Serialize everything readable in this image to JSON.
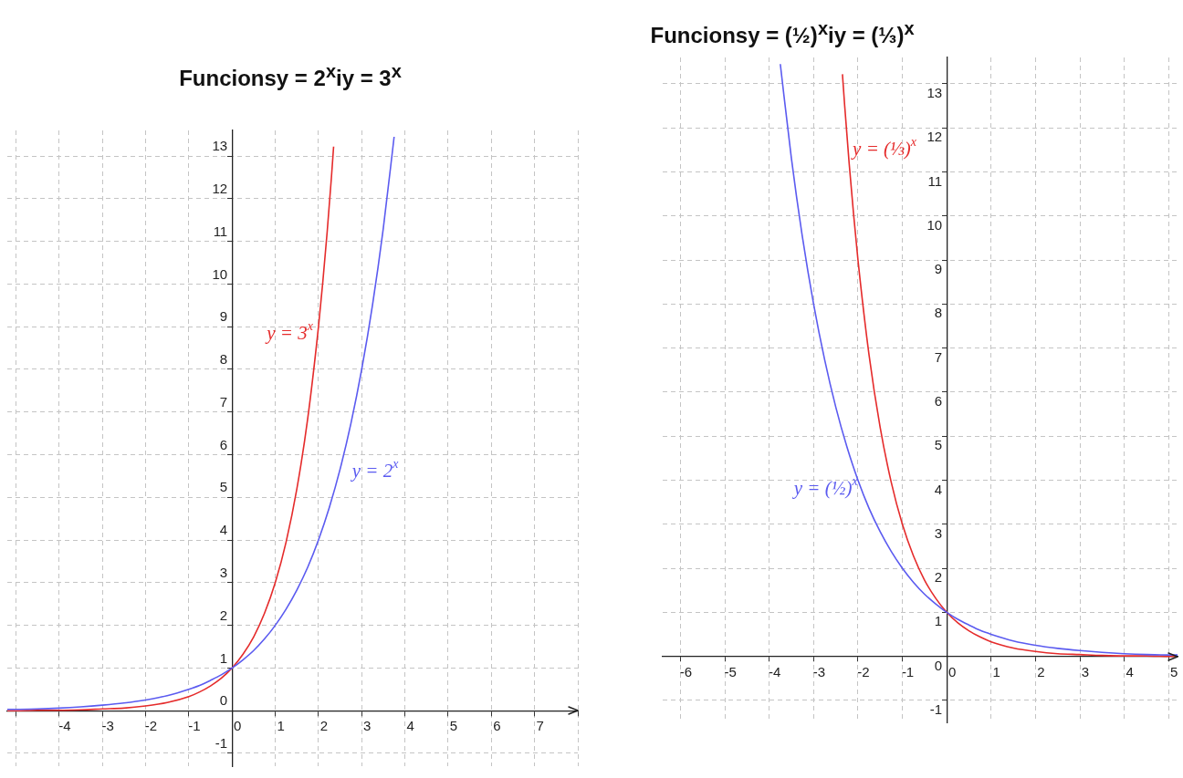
{
  "chart_data": [
    {
      "type": "line",
      "title": "Funcionsy = 2$^{x}$iy = 3$^{x}$",
      "series": [
        {
          "name": "y = 2$^{x}$",
          "color": "#5b5bf0",
          "x": [
            -5.2,
            -5,
            -4.5,
            -4,
            -3.5,
            -3,
            -2.5,
            -2,
            -1.5,
            -1,
            -0.75,
            -0.5,
            -0.25,
            0,
            0.25,
            0.5,
            0.75,
            1,
            1.25,
            1.5,
            1.75,
            2,
            2.25,
            2.5,
            2.75,
            3,
            3.25,
            3.5,
            3.75
          ],
          "values": [
            0.03,
            0.03,
            0.04,
            0.06,
            0.09,
            0.13,
            0.18,
            0.25,
            0.35,
            0.5,
            0.59,
            0.71,
            0.84,
            1,
            1.19,
            1.41,
            1.68,
            2,
            2.38,
            2.83,
            3.36,
            4,
            4.76,
            5.66,
            6.73,
            8,
            9.51,
            11.31,
            13.45
          ]
        },
        {
          "name": "y = 3$^{x}$",
          "color": "#e52b2b",
          "x": [
            -5.2,
            -5,
            -4.5,
            -4,
            -3.5,
            -3,
            -2.5,
            -2,
            -1.5,
            -1,
            -0.75,
            -0.5,
            -0.25,
            0,
            0.25,
            0.5,
            0.75,
            1,
            1.25,
            1.5,
            1.75,
            2,
            2.1,
            2.2,
            2.3,
            2.35
          ],
          "values": [
            0,
            0,
            0.01,
            0.01,
            0.02,
            0.04,
            0.06,
            0.11,
            0.19,
            0.33,
            0.44,
            0.58,
            0.76,
            1,
            1.32,
            1.73,
            2.28,
            3,
            3.95,
            5.2,
            6.84,
            9,
            10.05,
            11.21,
            12.51,
            13.22
          ]
        }
      ],
      "xlim": [
        -5.2,
        8
      ],
      "ylim": [
        -1.3,
        13.6
      ],
      "xticks": [
        {
          "value": -5,
          "label": null
        },
        -4,
        -3,
        -2,
        -1,
        0,
        1,
        2,
        3,
        4,
        5,
        6,
        7,
        {
          "value": 8,
          "label": null
        }
      ],
      "yticks": [
        -1,
        0,
        1,
        2,
        3,
        4,
        5,
        6,
        7,
        8,
        9,
        10,
        11,
        12,
        13
      ],
      "grid": true
    },
    {
      "type": "line",
      "title": "Funcionsy = (½)$^{x}$iy = (⅓)$^{x}$",
      "series": [
        {
          "name": "y = (½)$^{x}$",
          "color": "#5b5bf0",
          "x": [
            -3.75,
            -3.5,
            -3.25,
            -3,
            -2.75,
            -2.5,
            -2.25,
            -2,
            -1.75,
            -1.5,
            -1.25,
            -1,
            -0.75,
            -0.5,
            -0.25,
            0,
            0.25,
            0.5,
            0.75,
            1,
            1.5,
            2,
            2.5,
            3,
            3.5,
            4,
            4.5,
            5,
            5.2
          ],
          "values": [
            13.45,
            11.31,
            9.51,
            8,
            6.73,
            5.66,
            4.76,
            4,
            3.36,
            2.83,
            2.38,
            2,
            1.68,
            1.41,
            1.19,
            1,
            0.84,
            0.71,
            0.59,
            0.5,
            0.35,
            0.25,
            0.18,
            0.13,
            0.09,
            0.06,
            0.04,
            0.03,
            0.03
          ]
        },
        {
          "name": "y = (⅓)$^{x}$",
          "color": "#e52b2b",
          "x": [
            -2.35,
            -2.3,
            -2.2,
            -2.1,
            -2,
            -1.75,
            -1.5,
            -1.25,
            -1,
            -0.75,
            -0.5,
            -0.25,
            0,
            0.25,
            0.5,
            0.75,
            1,
            1.5,
            2,
            2.5,
            3,
            3.5,
            4,
            4.5,
            5,
            5.2
          ],
          "values": [
            13.22,
            12.51,
            11.21,
            10.05,
            9,
            6.84,
            5.2,
            3.95,
            3,
            2.28,
            1.73,
            1.32,
            1,
            0.76,
            0.58,
            0.44,
            0.33,
            0.19,
            0.11,
            0.06,
            0.04,
            0.02,
            0.01,
            0.01,
            0,
            0
          ]
        }
      ],
      "xlim": [
        -6.4,
        5.2
      ],
      "ylim": [
        -1.5,
        13.6
      ],
      "xticks": [
        -6,
        -5,
        -4,
        -3,
        -2,
        -1,
        0,
        1,
        2,
        3,
        4,
        5
      ],
      "yticks": [
        -1,
        0,
        1,
        2,
        3,
        4,
        5,
        6,
        7,
        8,
        9,
        10,
        11,
        12,
        13
      ],
      "grid": true
    }
  ]
}
